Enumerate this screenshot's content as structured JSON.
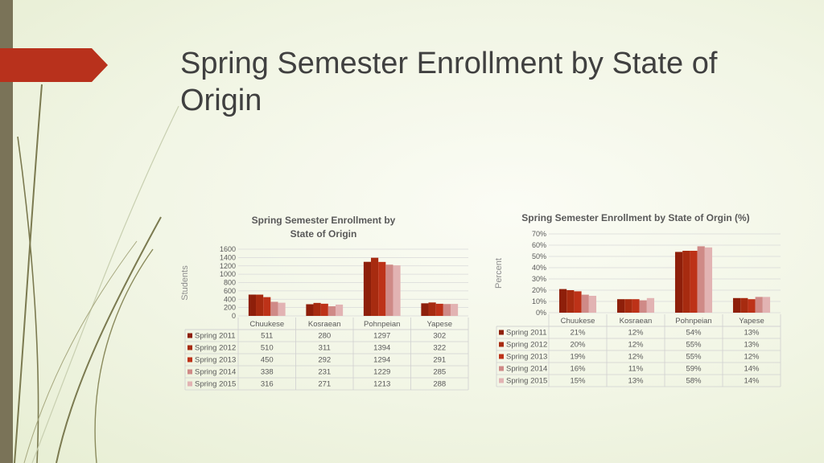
{
  "slide": {
    "title": "Spring Semester Enrollment by State of Origin"
  },
  "colors": {
    "accent_bar": "#b8311c",
    "side_bar": "#7a7358",
    "series": [
      "#8e1f0a",
      "#a72b10",
      "#bd3218",
      "#cf8a87",
      "#e2b3b3"
    ]
  },
  "chart_data": [
    {
      "type": "bar",
      "title": "Spring Semester Enrollment by State of Origin",
      "ylabel": "Students",
      "xlabel": "",
      "categories": [
        "Chuukese",
        "Kosraean",
        "Pohnpeian",
        "Yapese"
      ],
      "ylim": [
        0,
        1600
      ],
      "yticks": [
        "1600",
        "1400",
        "1200",
        "1000",
        "800",
        "600",
        "400",
        "200",
        "0"
      ],
      "legend": "data-table",
      "grid": true,
      "series": [
        {
          "name": "Spring 2011",
          "values": [
            511,
            280,
            1297,
            302
          ]
        },
        {
          "name": "Spring 2012",
          "values": [
            510,
            311,
            1394,
            322
          ]
        },
        {
          "name": "Spring 2013",
          "values": [
            450,
            292,
            1294,
            291
          ]
        },
        {
          "name": "Spring 2014",
          "values": [
            338,
            231,
            1229,
            285
          ]
        },
        {
          "name": "Spring 2015",
          "values": [
            316,
            271,
            1213,
            288
          ]
        }
      ],
      "table_cells": [
        [
          "511",
          "280",
          "1297",
          "302"
        ],
        [
          "510",
          "311",
          "1394",
          "322"
        ],
        [
          "450",
          "292",
          "1294",
          "291"
        ],
        [
          "338",
          "231",
          "1229",
          "285"
        ],
        [
          "316",
          "271",
          "1213",
          "288"
        ]
      ]
    },
    {
      "type": "bar",
      "title": "Spring Semester Enrollment by State of Orgin (%)",
      "ylabel": "Percent",
      "xlabel": "",
      "categories": [
        "Chuukese",
        "Kosraean",
        "Pohnpeian",
        "Yapese"
      ],
      "ylim": [
        0,
        70
      ],
      "yticks": [
        "70%",
        "60%",
        "50%",
        "40%",
        "30%",
        "20%",
        "10%",
        "0%"
      ],
      "legend": "data-table",
      "grid": true,
      "series": [
        {
          "name": "Spring 2011",
          "values": [
            21,
            12,
            54,
            13
          ]
        },
        {
          "name": "Spring 2012",
          "values": [
            20,
            12,
            55,
            13
          ]
        },
        {
          "name": "Spring 2013",
          "values": [
            19,
            12,
            55,
            12
          ]
        },
        {
          "name": "Spring 2014",
          "values": [
            16,
            11,
            59,
            14
          ]
        },
        {
          "name": "Spring 2015",
          "values": [
            15,
            13,
            58,
            14
          ]
        }
      ],
      "table_cells": [
        [
          "21%",
          "12%",
          "54%",
          "13%"
        ],
        [
          "20%",
          "12%",
          "55%",
          "13%"
        ],
        [
          "19%",
          "12%",
          "55%",
          "12%"
        ],
        [
          "16%",
          "11%",
          "59%",
          "14%"
        ],
        [
          "15%",
          "13%",
          "58%",
          "14%"
        ]
      ]
    }
  ]
}
